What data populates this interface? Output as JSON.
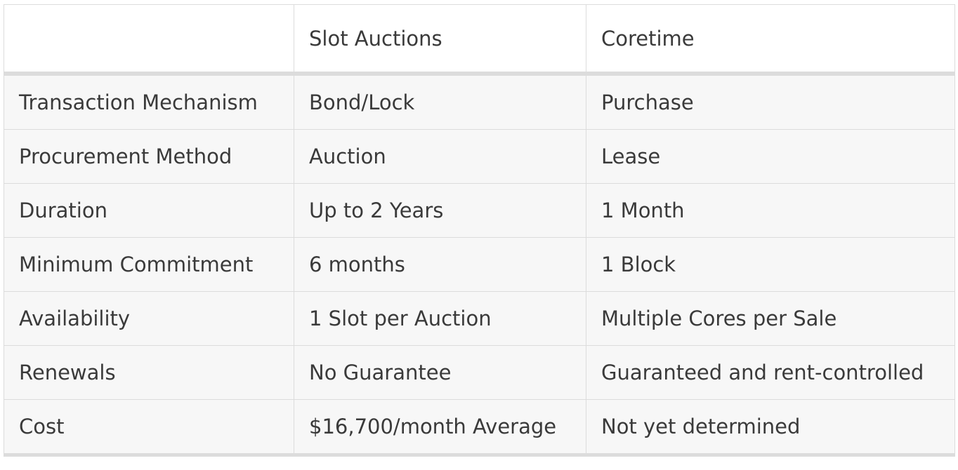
{
  "table": {
    "headers": [
      "",
      "Slot Auctions",
      "Coretime"
    ],
    "rows": [
      [
        "Transaction Mechanism",
        "Bond/Lock",
        "Purchase"
      ],
      [
        "Procurement Method",
        "Auction",
        "Lease"
      ],
      [
        "Duration",
        "Up to 2 Years",
        "1 Month"
      ],
      [
        "Minimum Commitment",
        "6 months",
        "1 Block"
      ],
      [
        "Availability",
        "1 Slot per Auction",
        "Multiple Cores per Sale"
      ],
      [
        "Renewals",
        "No Guarantee",
        "Guaranteed and rent-controlled"
      ],
      [
        "Cost",
        "$16,700/month Average",
        "Not yet determined"
      ]
    ]
  },
  "colors": {
    "text": "#3a3a3a",
    "border": "#dcdcdc",
    "row_background": "#f7f7f7",
    "header_background": "#ffffff"
  }
}
